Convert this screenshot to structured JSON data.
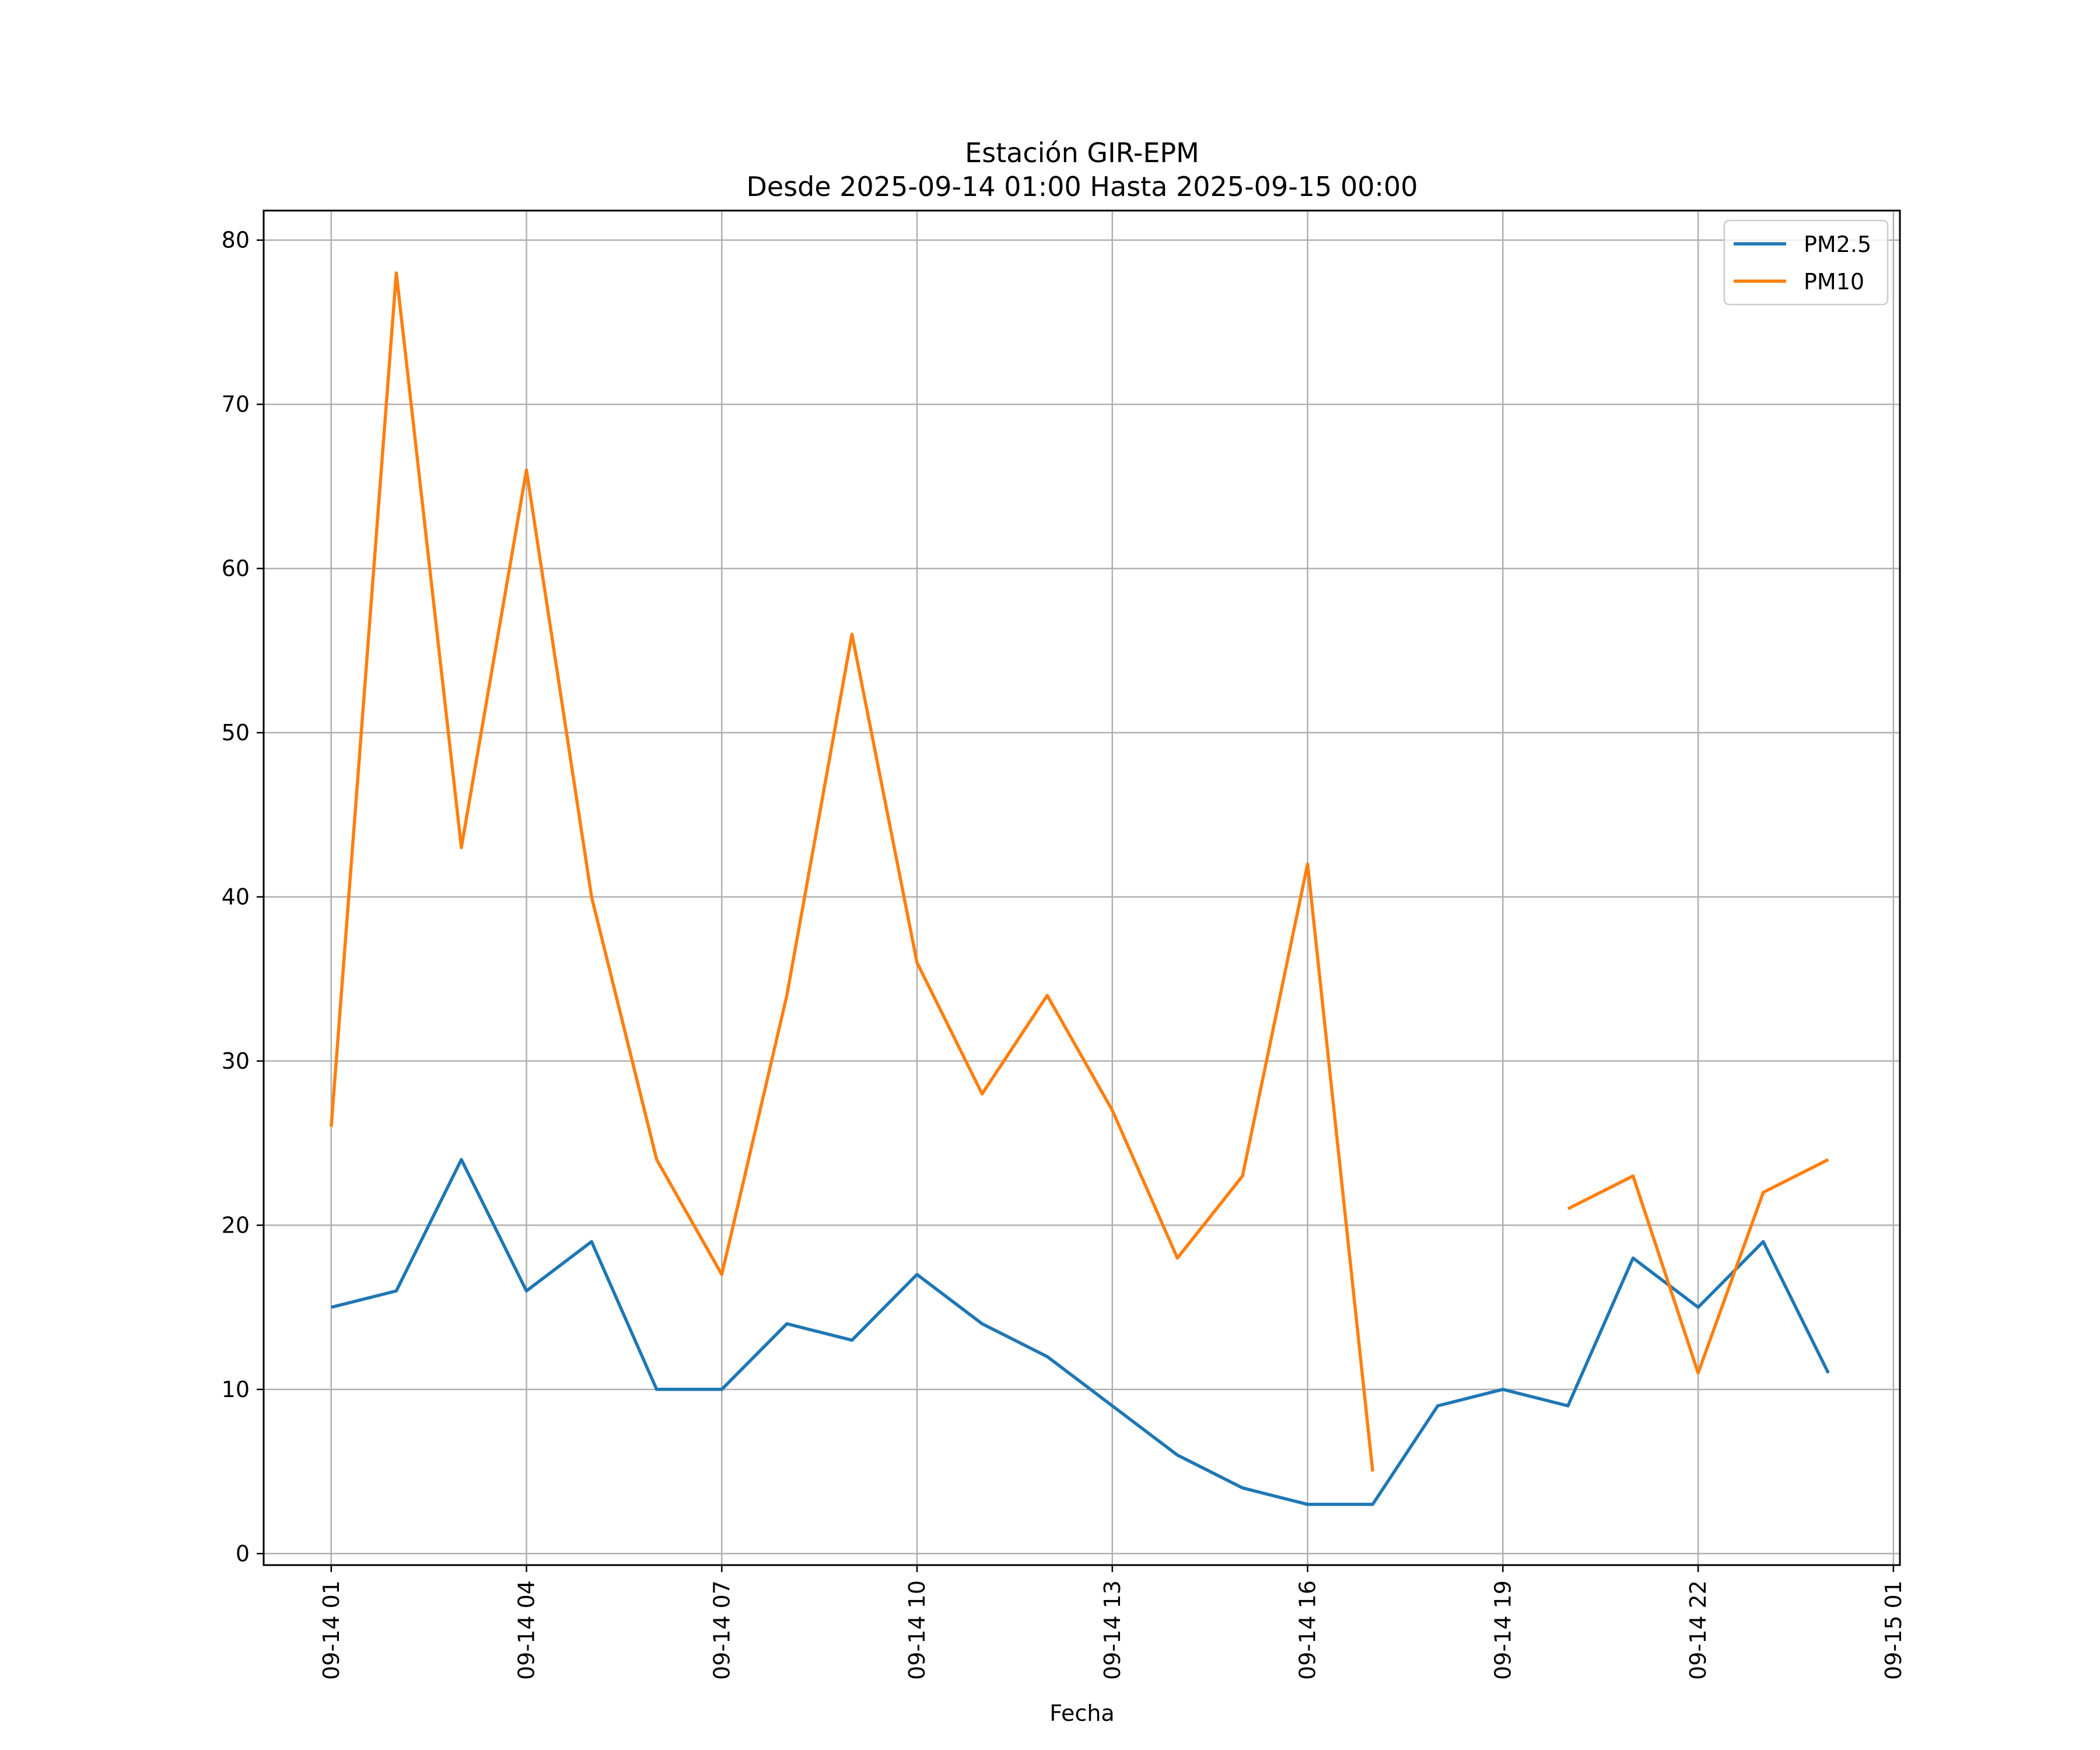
{
  "chart_data": {
    "type": "line",
    "title": "Estación GIR-EPM",
    "subtitle": "Desde 2025-09-14 01:00 Hasta 2025-09-15 00:00",
    "xlabel": "Fecha",
    "ylabel": "",
    "x_hours": [
      1,
      2,
      3,
      4,
      5,
      6,
      7,
      8,
      9,
      10,
      11,
      12,
      13,
      14,
      15,
      16,
      17,
      18,
      19,
      20,
      21,
      22,
      23,
      24
    ],
    "xlim_hours": [
      -0.0375,
      25.1
    ],
    "ylim": [
      -0.7,
      81.8
    ],
    "x_ticks": [
      {
        "hour": 1,
        "label": "09-14 01"
      },
      {
        "hour": 4,
        "label": "09-14 04"
      },
      {
        "hour": 7,
        "label": "09-14 07"
      },
      {
        "hour": 10,
        "label": "09-14 10"
      },
      {
        "hour": 13,
        "label": "09-14 13"
      },
      {
        "hour": 16,
        "label": "09-14 16"
      },
      {
        "hour": 19,
        "label": "09-14 19"
      },
      {
        "hour": 22,
        "label": "09-14 22"
      },
      {
        "hour": 25,
        "label": "09-15 01"
      }
    ],
    "y_ticks": [
      {
        "value": 0,
        "label": "0"
      },
      {
        "value": 10,
        "label": "10"
      },
      {
        "value": 20,
        "label": "20"
      },
      {
        "value": 30,
        "label": "30"
      },
      {
        "value": 40,
        "label": "40"
      },
      {
        "value": 50,
        "label": "50"
      },
      {
        "value": 60,
        "label": "60"
      },
      {
        "value": 70,
        "label": "70"
      },
      {
        "value": 80,
        "label": "80"
      }
    ],
    "grid": true,
    "legend_position": "top-right",
    "series": [
      {
        "name": "PM2.5",
        "color": "#1f77b4",
        "values": [
          15,
          16,
          24,
          16,
          19,
          10,
          10,
          14,
          13,
          17,
          14,
          12,
          9,
          6,
          4,
          3,
          3,
          9,
          10,
          9,
          18,
          15,
          19,
          11
        ]
      },
      {
        "name": "PM10",
        "color": "#ff7f0e",
        "values": [
          26,
          78,
          43,
          66,
          40,
          24,
          17,
          34,
          56,
          36,
          28,
          34,
          27,
          18,
          23,
          42,
          5,
          null,
          null,
          21,
          23,
          11,
          22,
          24
        ]
      }
    ]
  }
}
